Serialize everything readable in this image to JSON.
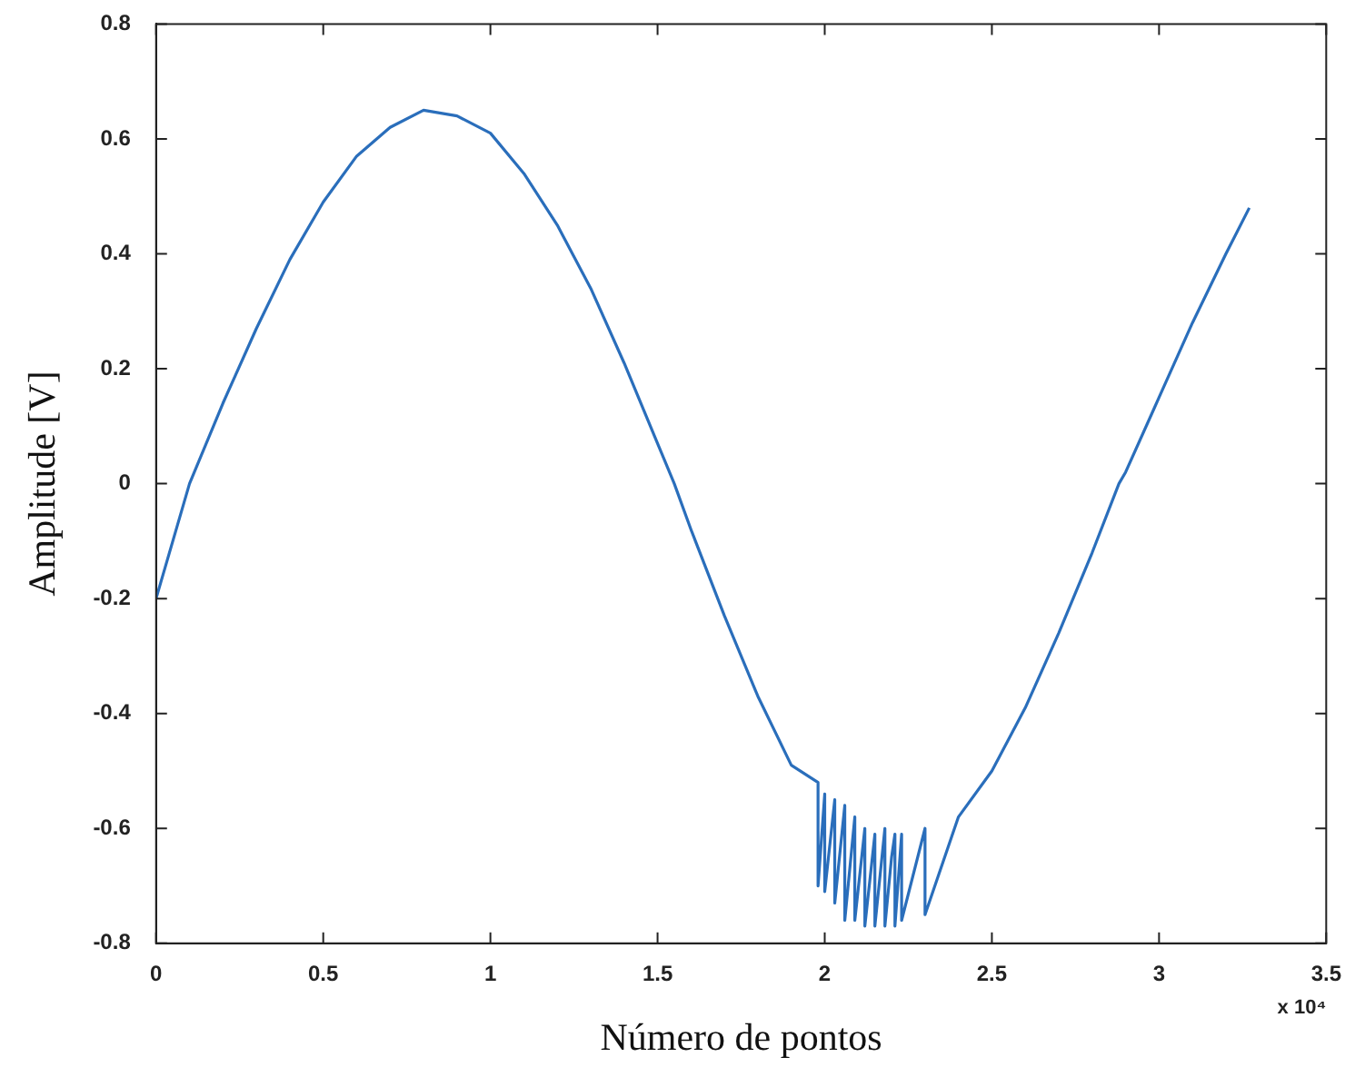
{
  "chart_data": {
    "type": "line",
    "xlabel": "Número de pontos",
    "ylabel": "Amplitude [V]",
    "annotations": [
      "x 10⁴"
    ],
    "x": [
      0,
      0.1,
      0.2,
      0.3,
      0.4,
      0.5,
      0.6,
      0.7,
      0.8,
      0.9,
      1.0,
      1.1,
      1.2,
      1.3,
      1.4,
      1.5,
      1.55,
      1.6,
      1.7,
      1.8,
      1.9,
      1.98,
      1.98,
      2.0,
      2.0,
      2.03,
      2.03,
      2.06,
      2.06,
      2.09,
      2.09,
      2.12,
      2.12,
      2.15,
      2.15,
      2.18,
      2.18,
      2.2,
      2.21,
      2.21,
      2.23,
      2.23,
      2.3,
      2.3,
      2.4,
      2.5,
      2.6,
      2.7,
      2.8,
      2.88,
      2.9,
      3.0,
      3.1,
      3.2,
      3.27
    ],
    "series": [
      {
        "color": "#2a6ebb",
        "values": [
          -0.2,
          0,
          0.14,
          0.27,
          0.39,
          0.49,
          0.57,
          0.62,
          0.65,
          0.64,
          0.61,
          0.54,
          0.45,
          0.34,
          0.21,
          0.07,
          0,
          -0.08,
          -0.23,
          -0.37,
          -0.49,
          -0.52,
          -0.7,
          -0.54,
          -0.71,
          -0.55,
          -0.73,
          -0.56,
          -0.76,
          -0.58,
          -0.76,
          -0.6,
          -0.77,
          -0.61,
          -0.77,
          -0.6,
          -0.77,
          -0.65,
          -0.61,
          -0.77,
          -0.61,
          -0.76,
          -0.6,
          -0.75,
          -0.58,
          -0.5,
          -0.39,
          -0.26,
          -0.12,
          0,
          0.02,
          0.15,
          0.28,
          0.4,
          0.48
        ]
      }
    ],
    "xlim": [
      0,
      3.5
    ],
    "xticks": [
      0,
      0.5,
      1,
      1.5,
      2,
      2.5,
      3,
      3.5
    ],
    "ylim": [
      -0.8,
      0.8
    ],
    "yticks": [
      -0.8,
      -0.6,
      -0.4,
      -0.2,
      0,
      0.2,
      0.4,
      0.6,
      0.8
    ]
  }
}
